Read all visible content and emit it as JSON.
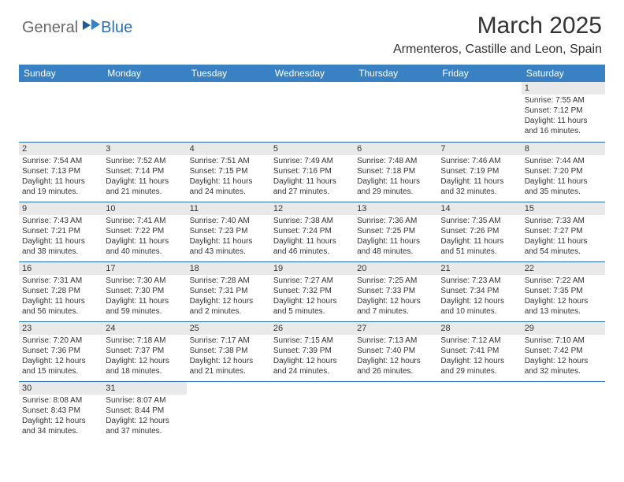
{
  "logo": {
    "general": "General",
    "blue": "Blue"
  },
  "title": "March 2025",
  "location": "Armenteros, Castille and Leon, Spain",
  "colors": {
    "header_bg": "#3a81c4",
    "border": "#2a6fb5",
    "daynum_bg": "#e9e9e9",
    "logo_gray": "#6a6a6a",
    "logo_blue": "#2a6fb5"
  },
  "day_headers": [
    "Sunday",
    "Monday",
    "Tuesday",
    "Wednesday",
    "Thursday",
    "Friday",
    "Saturday"
  ],
  "weeks": [
    [
      null,
      null,
      null,
      null,
      null,
      null,
      {
        "n": "1",
        "sr": "7:55 AM",
        "ss": "7:12 PM",
        "dl": "11 hours and 16 minutes."
      }
    ],
    [
      {
        "n": "2",
        "sr": "7:54 AM",
        "ss": "7:13 PM",
        "dl": "11 hours and 19 minutes."
      },
      {
        "n": "3",
        "sr": "7:52 AM",
        "ss": "7:14 PM",
        "dl": "11 hours and 21 minutes."
      },
      {
        "n": "4",
        "sr": "7:51 AM",
        "ss": "7:15 PM",
        "dl": "11 hours and 24 minutes."
      },
      {
        "n": "5",
        "sr": "7:49 AM",
        "ss": "7:16 PM",
        "dl": "11 hours and 27 minutes."
      },
      {
        "n": "6",
        "sr": "7:48 AM",
        "ss": "7:18 PM",
        "dl": "11 hours and 29 minutes."
      },
      {
        "n": "7",
        "sr": "7:46 AM",
        "ss": "7:19 PM",
        "dl": "11 hours and 32 minutes."
      },
      {
        "n": "8",
        "sr": "7:44 AM",
        "ss": "7:20 PM",
        "dl": "11 hours and 35 minutes."
      }
    ],
    [
      {
        "n": "9",
        "sr": "7:43 AM",
        "ss": "7:21 PM",
        "dl": "11 hours and 38 minutes."
      },
      {
        "n": "10",
        "sr": "7:41 AM",
        "ss": "7:22 PM",
        "dl": "11 hours and 40 minutes."
      },
      {
        "n": "11",
        "sr": "7:40 AM",
        "ss": "7:23 PM",
        "dl": "11 hours and 43 minutes."
      },
      {
        "n": "12",
        "sr": "7:38 AM",
        "ss": "7:24 PM",
        "dl": "11 hours and 46 minutes."
      },
      {
        "n": "13",
        "sr": "7:36 AM",
        "ss": "7:25 PM",
        "dl": "11 hours and 48 minutes."
      },
      {
        "n": "14",
        "sr": "7:35 AM",
        "ss": "7:26 PM",
        "dl": "11 hours and 51 minutes."
      },
      {
        "n": "15",
        "sr": "7:33 AM",
        "ss": "7:27 PM",
        "dl": "11 hours and 54 minutes."
      }
    ],
    [
      {
        "n": "16",
        "sr": "7:31 AM",
        "ss": "7:28 PM",
        "dl": "11 hours and 56 minutes."
      },
      {
        "n": "17",
        "sr": "7:30 AM",
        "ss": "7:30 PM",
        "dl": "11 hours and 59 minutes."
      },
      {
        "n": "18",
        "sr": "7:28 AM",
        "ss": "7:31 PM",
        "dl": "12 hours and 2 minutes."
      },
      {
        "n": "19",
        "sr": "7:27 AM",
        "ss": "7:32 PM",
        "dl": "12 hours and 5 minutes."
      },
      {
        "n": "20",
        "sr": "7:25 AM",
        "ss": "7:33 PM",
        "dl": "12 hours and 7 minutes."
      },
      {
        "n": "21",
        "sr": "7:23 AM",
        "ss": "7:34 PM",
        "dl": "12 hours and 10 minutes."
      },
      {
        "n": "22",
        "sr": "7:22 AM",
        "ss": "7:35 PM",
        "dl": "12 hours and 13 minutes."
      }
    ],
    [
      {
        "n": "23",
        "sr": "7:20 AM",
        "ss": "7:36 PM",
        "dl": "12 hours and 15 minutes."
      },
      {
        "n": "24",
        "sr": "7:18 AM",
        "ss": "7:37 PM",
        "dl": "12 hours and 18 minutes."
      },
      {
        "n": "25",
        "sr": "7:17 AM",
        "ss": "7:38 PM",
        "dl": "12 hours and 21 minutes."
      },
      {
        "n": "26",
        "sr": "7:15 AM",
        "ss": "7:39 PM",
        "dl": "12 hours and 24 minutes."
      },
      {
        "n": "27",
        "sr": "7:13 AM",
        "ss": "7:40 PM",
        "dl": "12 hours and 26 minutes."
      },
      {
        "n": "28",
        "sr": "7:12 AM",
        "ss": "7:41 PM",
        "dl": "12 hours and 29 minutes."
      },
      {
        "n": "29",
        "sr": "7:10 AM",
        "ss": "7:42 PM",
        "dl": "12 hours and 32 minutes."
      }
    ],
    [
      {
        "n": "30",
        "sr": "8:08 AM",
        "ss": "8:43 PM",
        "dl": "12 hours and 34 minutes."
      },
      {
        "n": "31",
        "sr": "8:07 AM",
        "ss": "8:44 PM",
        "dl": "12 hours and 37 minutes."
      },
      null,
      null,
      null,
      null,
      null
    ]
  ],
  "labels": {
    "sunrise": "Sunrise: ",
    "sunset": "Sunset: ",
    "daylight": "Daylight: "
  }
}
